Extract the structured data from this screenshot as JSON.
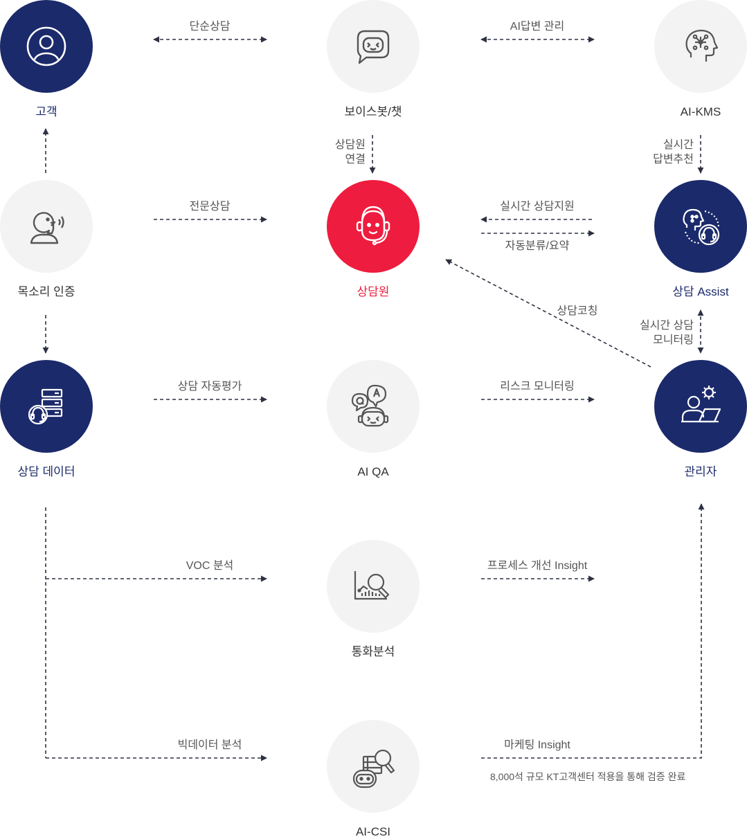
{
  "nodes": {
    "customer": {
      "label": "고객"
    },
    "voicebot": {
      "label": "보이스봇/챗"
    },
    "aikms": {
      "label": "AI-KMS"
    },
    "voice_auth": {
      "label": "목소리 인증"
    },
    "agent": {
      "label": "상담원"
    },
    "assist": {
      "label": "상담 Assist"
    },
    "consult_data": {
      "label": "상담 데이터"
    },
    "aiqa": {
      "label": "AI QA"
    },
    "manager": {
      "label": "관리자"
    },
    "call_analysis": {
      "label": "통화분석"
    },
    "aicsi": {
      "label": "AI-CSI"
    }
  },
  "edges": {
    "simple_consult": "단순상담",
    "ai_answer_mgmt": "AI답변 관리",
    "agent_connect": [
      "상담원",
      "연결"
    ],
    "realtime_recommend": [
      "실시간",
      "답변추천"
    ],
    "expert_consult": "전문상담",
    "realtime_support": "실시간 상담지원",
    "auto_classify": "자동분류/요약",
    "coaching": "상담코칭",
    "realtime_monitoring": [
      "실시간 상담",
      "모니터링"
    ],
    "auto_evaluation": "상담 자동평가",
    "risk_monitoring": "리스크 모니터링",
    "voc_analysis": "VOC 분석",
    "process_insight": "프로세스 개선 Insight",
    "bigdata_analysis": "빅데이터 분석",
    "marketing_insight": "마케팅 Insight"
  },
  "note": "8,000석 규모 KT고객센터 적용을 통해 검증 완료",
  "colors": {
    "navy": "#1b2a6b",
    "red": "#ee1c3e",
    "light_circle": "#f3f3f3",
    "icon_gray": "#555555",
    "dash": "#2d3142"
  }
}
